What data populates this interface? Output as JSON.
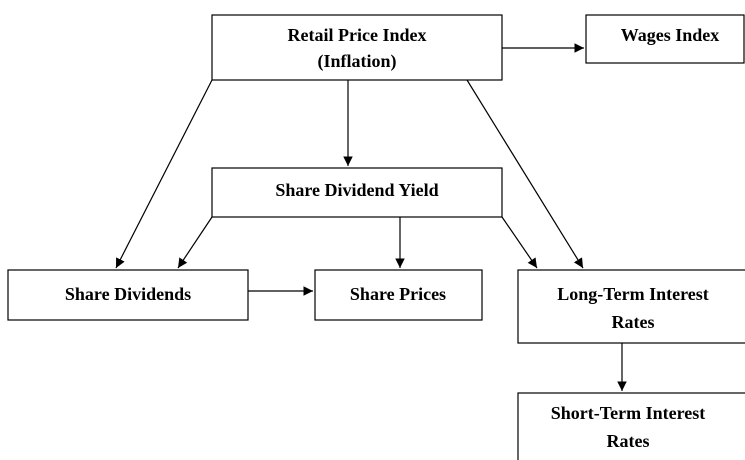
{
  "nodes": [
    {
      "label": [
        "Retail Price Index",
        "(Inflation)"
      ]
    },
    {
      "label": [
        "Wages Index"
      ]
    },
    {
      "label": [
        "Share Dividend Yield"
      ]
    },
    {
      "label": [
        "Share Dividends"
      ]
    },
    {
      "label": [
        "Share Prices"
      ]
    },
    {
      "label": [
        "Long-Term Interest",
        "Rates"
      ]
    },
    {
      "label": [
        "Short-Term Interest",
        "Rates"
      ]
    }
  ]
}
